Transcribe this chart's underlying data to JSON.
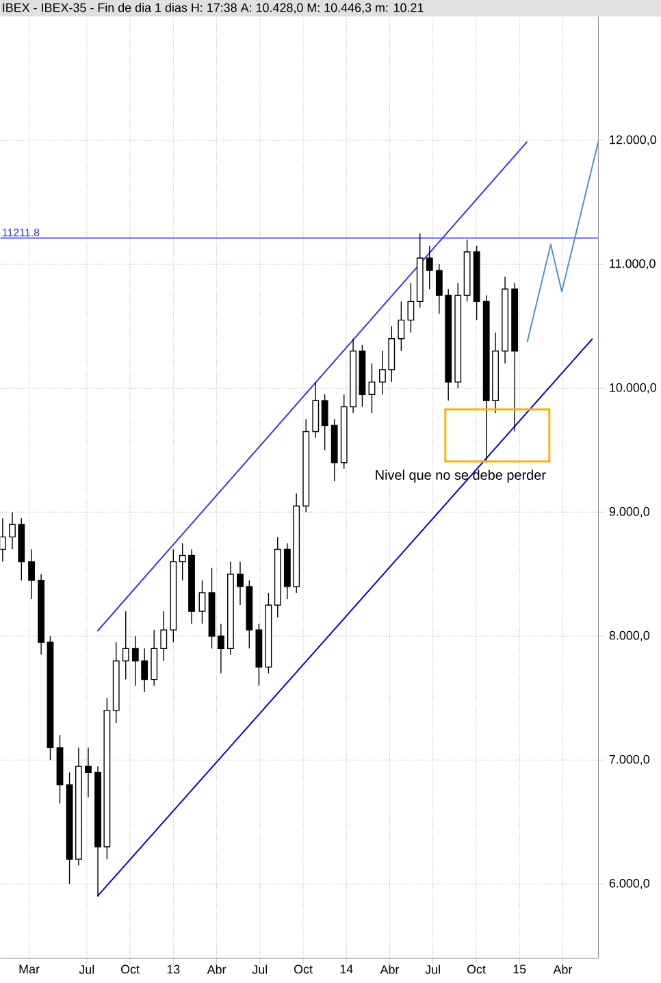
{
  "chart_data": {
    "type": "candlestick",
    "title": "IBEX - IBEX-35 - Fin de dia 1 dias H: 17:38 A: 10.428,0 M: 10.446,3 m: 10.21",
    "x": [
      "2012-01-06",
      "2012-01-26",
      "2012-02-15",
      "2012-03-06",
      "2012-03-26",
      "2012-04-15",
      "2012-05-05",
      "2012-05-25",
      "2012-06-14",
      "2012-07-04",
      "2012-07-24",
      "2012-08-13",
      "2012-09-02",
      "2012-09-22",
      "2012-10-12",
      "2012-11-01",
      "2012-11-21",
      "2012-12-11",
      "2012-12-31",
      "2013-01-20",
      "2013-02-09",
      "2013-03-01",
      "2013-03-21",
      "2013-04-10",
      "2013-04-30",
      "2013-05-20",
      "2013-06-09",
      "2013-06-29",
      "2013-07-19",
      "2013-08-08",
      "2013-08-28",
      "2013-09-17",
      "2013-10-07",
      "2013-10-27",
      "2013-11-16",
      "2013-12-06",
      "2013-12-26",
      "2014-01-15",
      "2014-02-04",
      "2014-02-24",
      "2014-03-16",
      "2014-04-05",
      "2014-04-25",
      "2014-05-15",
      "2014-06-04",
      "2014-06-24",
      "2014-07-14",
      "2014-08-03",
      "2014-08-23",
      "2014-09-12",
      "2014-10-02",
      "2014-10-22",
      "2014-11-11",
      "2014-12-01",
      "2014-12-21"
    ],
    "ohlc": [
      [
        8700,
        8950,
        8600,
        8800
      ],
      [
        8800,
        9000,
        8700,
        8900
      ],
      [
        8900,
        8950,
        8450,
        8600
      ],
      [
        8600,
        8700,
        8300,
        8450
      ],
      [
        8450,
        8500,
        7850,
        7950
      ],
      [
        7950,
        8000,
        7000,
        7100
      ],
      [
        7100,
        7200,
        6650,
        6800
      ],
      [
        6800,
        6900,
        6000,
        6200
      ],
      [
        6200,
        7100,
        6150,
        6950
      ],
      [
        6950,
        7100,
        6700,
        6900
      ],
      [
        6900,
        6950,
        5900,
        6300
      ],
      [
        6300,
        7500,
        6200,
        7400
      ],
      [
        7400,
        7950,
        7300,
        7800
      ],
      [
        7800,
        8200,
        7650,
        7900
      ],
      [
        7900,
        8000,
        7600,
        7800
      ],
      [
        7800,
        7900,
        7550,
        7650
      ],
      [
        7650,
        8050,
        7600,
        7900
      ],
      [
        7900,
        8200,
        7800,
        8050
      ],
      [
        8050,
        8700,
        7950,
        8600
      ],
      [
        8600,
        8750,
        8450,
        8650
      ],
      [
        8650,
        8700,
        8100,
        8200
      ],
      [
        8200,
        8450,
        8100,
        8350
      ],
      [
        8350,
        8550,
        7900,
        8000
      ],
      [
        8000,
        8100,
        7700,
        7900
      ],
      [
        7900,
        8600,
        7850,
        8500
      ],
      [
        8500,
        8600,
        8250,
        8400
      ],
      [
        8400,
        8450,
        7900,
        8050
      ],
      [
        8050,
        8100,
        7600,
        7750
      ],
      [
        7750,
        8350,
        7700,
        8250
      ],
      [
        8250,
        8800,
        8150,
        8700
      ],
      [
        8700,
        8750,
        8300,
        8400
      ],
      [
        8400,
        9150,
        8350,
        9050
      ],
      [
        9050,
        9750,
        9000,
        9650
      ],
      [
        9650,
        10050,
        9600,
        9900
      ],
      [
        9900,
        9950,
        9500,
        9700
      ],
      [
        9700,
        9750,
        9250,
        9400
      ],
      [
        9400,
        9950,
        9350,
        9850
      ],
      [
        9850,
        10400,
        9800,
        10300
      ],
      [
        10300,
        10350,
        9850,
        9950
      ],
      [
        9950,
        10200,
        9800,
        10050
      ],
      [
        10050,
        10300,
        9950,
        10150
      ],
      [
        10150,
        10500,
        10050,
        10400
      ],
      [
        10400,
        10700,
        10300,
        10550
      ],
      [
        10550,
        10850,
        10450,
        10700
      ],
      [
        10700,
        11250,
        10650,
        11050
      ],
      [
        11050,
        11150,
        10800,
        10950
      ],
      [
        10950,
        11000,
        10600,
        10750
      ],
      [
        10750,
        10800,
        9900,
        10050
      ],
      [
        10050,
        10850,
        10000,
        10750
      ],
      [
        10750,
        11200,
        10700,
        11100
      ],
      [
        11100,
        11150,
        10550,
        10700
      ],
      [
        10700,
        10750,
        9400,
        9900
      ],
      [
        9900,
        10450,
        9800,
        10300
      ],
      [
        10300,
        10900,
        10200,
        10800
      ],
      [
        10800,
        10850,
        9650,
        10300
      ]
    ],
    "series": [
      {
        "type": "line",
        "color": "#3333ff",
        "x": [
          "2012-07-23",
          "2015-01-17"
        ],
        "values": [
          8040,
          11990
        ]
      },
      {
        "type": "line",
        "color": "#0000ee",
        "x": [
          "2012-07-23",
          "2015-06-03"
        ],
        "values": [
          5900,
          10400
        ]
      },
      {
        "type": "line",
        "color": "#4a8fd8",
        "x": [
          "2015-01-17",
          "2015-03-06",
          "2015-03-29",
          "2015-06-15"
        ],
        "values": [
          10370,
          11160,
          10780,
          11990
        ]
      }
    ],
    "ref_lines": [
      {
        "axis": "y",
        "value": 11211.8,
        "label": "11211.8",
        "color": "#3333ff"
      }
    ],
    "annotations": [
      {
        "text": "Nivel que no se debe perder",
        "x": "2014-11-15",
        "y": 9620
      }
    ],
    "xlim": [
      "2012-01-01",
      "2015-06-15"
    ],
    "xticks": [
      {
        "value": "2012-03-01",
        "label": "Mar"
      },
      {
        "value": "2012-07-01",
        "label": "Jul"
      },
      {
        "value": "2012-10-01",
        "label": "Oct"
      },
      {
        "value": "2013-01-01",
        "label": "13"
      },
      {
        "value": "2013-04-01",
        "label": "Abr"
      },
      {
        "value": "2013-07-01",
        "label": "Jul"
      },
      {
        "value": "2013-10-01",
        "label": "Oct"
      },
      {
        "value": "2014-01-01",
        "label": "14"
      },
      {
        "value": "2014-04-01",
        "label": "Abr"
      },
      {
        "value": "2014-07-01",
        "label": "Jul"
      },
      {
        "value": "2014-10-01",
        "label": "Oct"
      },
      {
        "value": "2015-01-01",
        "label": "15"
      },
      {
        "value": "2015-04-01",
        "label": "Abr"
      }
    ],
    "ylim": [
      5400,
      13000
    ],
    "yticks": [
      {
        "value": 6000,
        "label": "6.000,0"
      },
      {
        "value": 7000,
        "label": "7.000,0"
      },
      {
        "value": 8000,
        "label": "8.000,0"
      },
      {
        "value": 9000,
        "label": "9.000,0"
      },
      {
        "value": 10000,
        "label": "10.000,0"
      },
      {
        "value": 11000,
        "label": "11.000,0"
      },
      {
        "value": 12000,
        "label": "12.000,0"
      }
    ],
    "grid": true
  }
}
